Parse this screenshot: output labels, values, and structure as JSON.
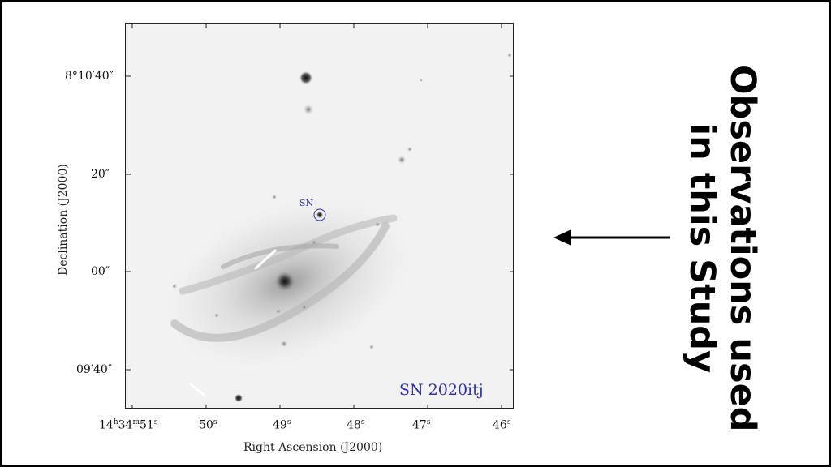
{
  "image": {
    "target_name": "SN 2020itj",
    "marker_label": "SN"
  },
  "axes": {
    "xlabel": "Right Ascension (J2000)",
    "ylabel": "Declination (J2000)",
    "x_ticks": [
      {
        "main": "14",
        "unit1": "h",
        "mid": "34",
        "unit2": "m",
        "tail": "51",
        "unit3": "s"
      },
      {
        "main": "50",
        "unit1": "s"
      },
      {
        "main": "49",
        "unit1": "s"
      },
      {
        "main": "48",
        "unit1": "s"
      },
      {
        "main": "47",
        "unit1": "s"
      },
      {
        "main": "46",
        "unit1": "s"
      }
    ],
    "y_ticks": [
      "8°10′40″",
      "20″",
      "00″",
      "09′40″"
    ]
  },
  "annotation": {
    "line1": "Observations used",
    "line2": "in this Study",
    "arrow_icon": "left-arrow-icon"
  },
  "colors": {
    "label_blue": "#2f2fb5",
    "background": "#f2f2f2"
  }
}
